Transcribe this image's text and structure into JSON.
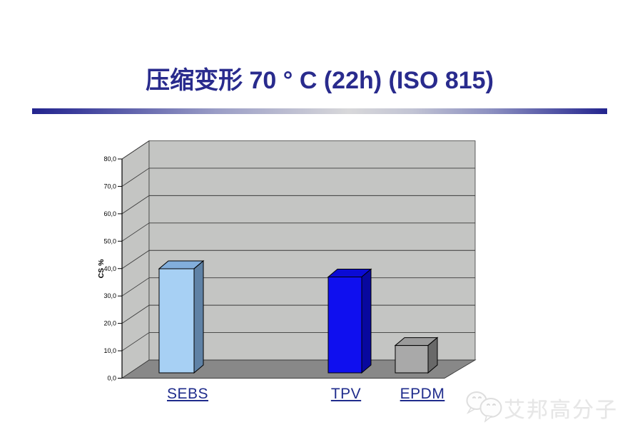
{
  "slide": {
    "title": "压缩变形 70 ° C (22h) (ISO 815)",
    "title_color": "#292b8d"
  },
  "chart_data": {
    "type": "bar",
    "style": "3d-column",
    "title": "",
    "xlabel": "",
    "ylabel": "CS %",
    "ylim": [
      0,
      80
    ],
    "ytick_step": 10,
    "ytick_labels": [
      "0,0",
      "10,0",
      "20,0",
      "30,0",
      "40,0",
      "50,0",
      "60,0",
      "70,0",
      "80,0"
    ],
    "grid": true,
    "legend": false,
    "categories": [
      "SEBS",
      "TPV",
      "EPDM"
    ],
    "values": [
      38,
      35,
      10
    ],
    "bar_colors": [
      {
        "front": "#a7d0f4",
        "top": "#82aedb",
        "side": "#5f82a6"
      },
      {
        "front": "#0f0fef",
        "top": "#0b0bd4",
        "side": "#08089e"
      },
      {
        "front": "#a9a9a9",
        "top": "#9b9b9b",
        "side": "#696969"
      }
    ],
    "wall_color": "#c4c5c3",
    "floor_color": "#888888",
    "gridline_color": "#3a3a3a",
    "category_label_color": "#1f2c8c",
    "tick_label_color": "#000000"
  },
  "watermark": {
    "text": "艾邦高分子",
    "logo": "wechat-bubbles-icon"
  }
}
